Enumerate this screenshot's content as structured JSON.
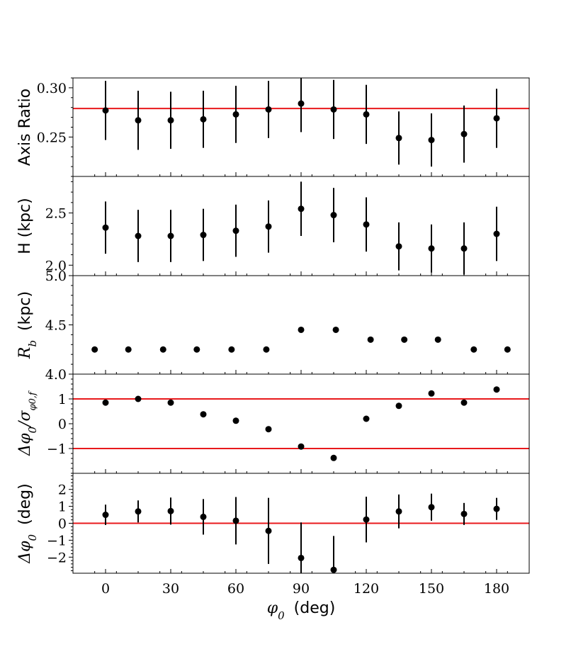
{
  "colors": {
    "data": "#000000",
    "reference": "#e8191c",
    "frame": "#000000"
  },
  "chart_data": {
    "type": "scatter",
    "layout": "vertical-stack-shared-x",
    "xlabel": {
      "symbol": "φ",
      "sub": "0",
      "unit": "(deg)"
    },
    "xlim": [
      -15,
      195
    ],
    "xticks": [
      0,
      30,
      60,
      90,
      120,
      150,
      180
    ],
    "xtick_labels": [
      "0",
      "30",
      "60",
      "90",
      "120",
      "150",
      "180"
    ],
    "panels": [
      {
        "id": "axis-ratio",
        "ylabel": "Axis Ratio",
        "ylim": [
          0.21,
          0.31
        ],
        "yticks": [
          0.25,
          0.3
        ],
        "ytick_labels": [
          "0.25",
          "0.30"
        ],
        "reference_lines": [
          0.279
        ],
        "points": [
          {
            "x": 0,
            "y": 0.277,
            "err": 0.03
          },
          {
            "x": 15,
            "y": 0.267,
            "err": 0.03
          },
          {
            "x": 30,
            "y": 0.267,
            "err": 0.029
          },
          {
            "x": 45,
            "y": 0.268,
            "err": 0.029
          },
          {
            "x": 60,
            "y": 0.273,
            "err": 0.029
          },
          {
            "x": 75,
            "y": 0.278,
            "err": 0.029
          },
          {
            "x": 90,
            "y": 0.284,
            "err": 0.029
          },
          {
            "x": 105,
            "y": 0.278,
            "err": 0.03
          },
          {
            "x": 120,
            "y": 0.273,
            "err": 0.03
          },
          {
            "x": 135,
            "y": 0.249,
            "err": 0.027
          },
          {
            "x": 150,
            "y": 0.247,
            "err": 0.027
          },
          {
            "x": 165,
            "y": 0.253,
            "err": 0.029
          },
          {
            "x": 180,
            "y": 0.269,
            "err": 0.03
          }
        ]
      },
      {
        "id": "scale-height",
        "ylabel": "H (kpc)",
        "ylim": [
          1.9,
          2.85
        ],
        "yticks": [
          2.0,
          2.5
        ],
        "ytick_labels": [
          "2.0",
          "2.5"
        ],
        "reference_lines": [],
        "points": [
          {
            "x": 0,
            "y": 2.36,
            "err": 0.25
          },
          {
            "x": 15,
            "y": 2.28,
            "err": 0.25
          },
          {
            "x": 30,
            "y": 2.28,
            "err": 0.25
          },
          {
            "x": 45,
            "y": 2.29,
            "err": 0.25
          },
          {
            "x": 60,
            "y": 2.33,
            "err": 0.25
          },
          {
            "x": 75,
            "y": 2.37,
            "err": 0.25
          },
          {
            "x": 90,
            "y": 2.54,
            "err": 0.26
          },
          {
            "x": 105,
            "y": 2.48,
            "err": 0.26
          },
          {
            "x": 120,
            "y": 2.39,
            "err": 0.26
          },
          {
            "x": 135,
            "y": 2.18,
            "err": 0.23
          },
          {
            "x": 150,
            "y": 2.16,
            "err": 0.23
          },
          {
            "x": 165,
            "y": 2.16,
            "err": 0.25
          },
          {
            "x": 180,
            "y": 2.3,
            "err": 0.26
          }
        ]
      },
      {
        "id": "bar-radius",
        "ylabel": {
          "symbol": "R",
          "sub": "b",
          "unit": "(kpc)"
        },
        "ylim": [
          4.0,
          5.0
        ],
        "yticks": [
          4.0,
          4.5,
          5.0
        ],
        "ytick_labels": [
          "4.0",
          "4.5",
          "5.0"
        ],
        "reference_lines": [],
        "points": [
          {
            "x": -5,
            "y": 4.25
          },
          {
            "x": 10.5,
            "y": 4.25
          },
          {
            "x": 26.5,
            "y": 4.25
          },
          {
            "x": 42,
            "y": 4.25
          },
          {
            "x": 58,
            "y": 4.25
          },
          {
            "x": 74,
            "y": 4.25
          },
          {
            "x": 90,
            "y": 4.45
          },
          {
            "x": 106,
            "y": 4.45
          },
          {
            "x": 122,
            "y": 4.35
          },
          {
            "x": 137.5,
            "y": 4.35
          },
          {
            "x": 153,
            "y": 4.35
          },
          {
            "x": 169.5,
            "y": 4.25
          },
          {
            "x": 185,
            "y": 4.25
          }
        ]
      },
      {
        "id": "normalized-offset",
        "ylabel": {
          "prefix": "Δφ",
          "sub": "0",
          "slash": "/",
          "sigma": "σ",
          "sigma_sub": "φ0,f"
        },
        "ylim": [
          -2.0,
          2.0
        ],
        "yticks": [
          -1,
          0,
          1
        ],
        "ytick_labels": [
          "−1",
          "0",
          "1"
        ],
        "reference_lines": [
          1,
          -1
        ],
        "points": [
          {
            "x": 0,
            "y": 0.85
          },
          {
            "x": 15,
            "y": 1.0
          },
          {
            "x": 30,
            "y": 0.85
          },
          {
            "x": 45,
            "y": 0.38
          },
          {
            "x": 60,
            "y": 0.12
          },
          {
            "x": 75,
            "y": -0.22
          },
          {
            "x": 90,
            "y": -0.92
          },
          {
            "x": 105,
            "y": -1.38
          },
          {
            "x": 120,
            "y": 0.2
          },
          {
            "x": 135,
            "y": 0.72
          },
          {
            "x": 150,
            "y": 1.22
          },
          {
            "x": 165,
            "y": 0.85
          },
          {
            "x": 180,
            "y": 1.38
          }
        ]
      },
      {
        "id": "angle-offset",
        "ylabel": {
          "prefix": "Δφ",
          "sub": "0",
          "unit": "(deg)"
        },
        "ylim": [
          -2.95,
          2.95
        ],
        "yticks": [
          -2,
          -1,
          0,
          1,
          2
        ],
        "ytick_labels": [
          "−2",
          "−1",
          "0",
          "1",
          "2"
        ],
        "reference_lines": [
          0
        ],
        "points": [
          {
            "x": 0,
            "y": 0.5,
            "err": 0.6
          },
          {
            "x": 15,
            "y": 0.7,
            "err": 0.65
          },
          {
            "x": 30,
            "y": 0.72,
            "err": 0.8
          },
          {
            "x": 45,
            "y": 0.38,
            "err": 1.05
          },
          {
            "x": 60,
            "y": 0.15,
            "err": 1.4
          },
          {
            "x": 75,
            "y": -0.45,
            "err": 1.95
          },
          {
            "x": 90,
            "y": -2.05,
            "err": 2.1
          },
          {
            "x": 105,
            "y": -2.75,
            "err": 2.0
          },
          {
            "x": 120,
            "y": 0.22,
            "err": 1.35
          },
          {
            "x": 135,
            "y": 0.7,
            "err": 1.0
          },
          {
            "x": 150,
            "y": 0.95,
            "err": 0.8
          },
          {
            "x": 165,
            "y": 0.55,
            "err": 0.65
          },
          {
            "x": 180,
            "y": 0.85,
            "err": 0.65
          }
        ]
      }
    ]
  }
}
